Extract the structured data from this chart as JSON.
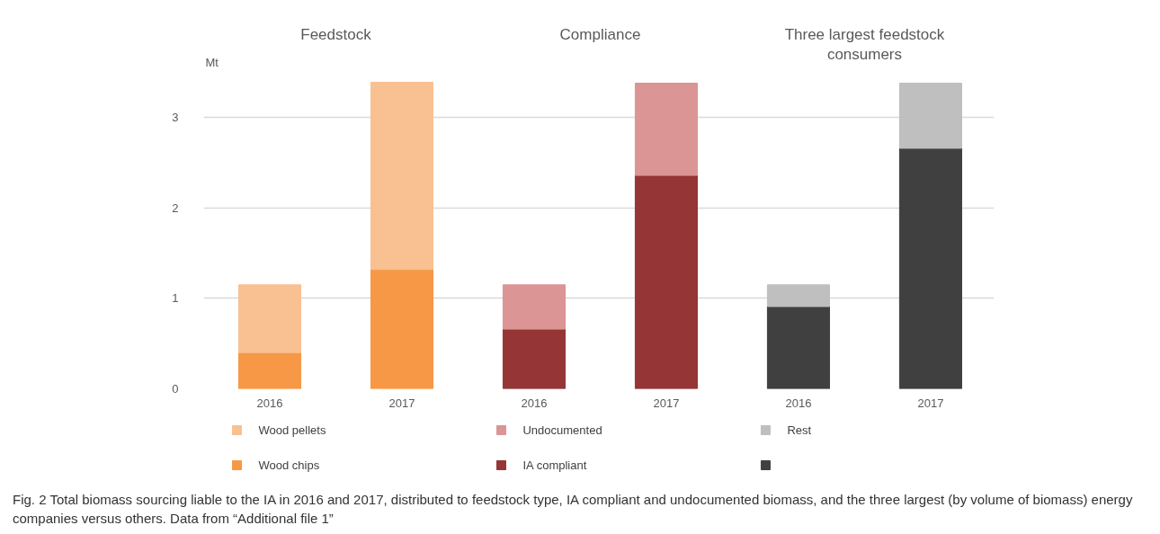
{
  "chart_data": {
    "type": "bar",
    "stacked": true,
    "categories": [
      "2016",
      "2017",
      "2016",
      "2017",
      "2016",
      "2017"
    ],
    "ylabel": "Mt",
    "ylim": [
      0,
      3.4
    ],
    "yticks": [
      0,
      1,
      2,
      3
    ],
    "grid": "y",
    "legend": "bottom",
    "annotations": [
      "Feedstock",
      "Compliance",
      "Three largest feedstock\nconsumers",
      "Fig. 2 Total biomass sourcing liable to the IA in 2016 and 2017, distributed to feedstock type, IA compliant and undocumented biomass, and the three largest (by volume of biomass) energy companies versus others. Data from “Additional file 1”"
    ],
    "series": [
      {
        "name": "Wood chips",
        "color": "#f69846",
        "values": [
          0.4,
          1.32,
          null,
          null,
          null,
          null
        ]
      },
      {
        "name": "Wood pellets",
        "color": "#f9c092",
        "values": [
          0.75,
          2.07,
          null,
          null,
          null,
          null
        ]
      },
      {
        "name": "IA compliant",
        "color": "#953535",
        "values": [
          null,
          null,
          0.66,
          2.36,
          null,
          null
        ]
      },
      {
        "name": "Undocumented",
        "color": "#da9594",
        "values": [
          null,
          null,
          0.49,
          1.02,
          null,
          null
        ]
      },
      {
        "color": "#404040",
        "values": [
          null,
          null,
          null,
          null,
          0.91,
          2.66
        ]
      },
      {
        "name": "Rest",
        "color": "#bfbfbf",
        "values": [
          null,
          null,
          null,
          null,
          0.24,
          0.72
        ]
      }
    ]
  }
}
